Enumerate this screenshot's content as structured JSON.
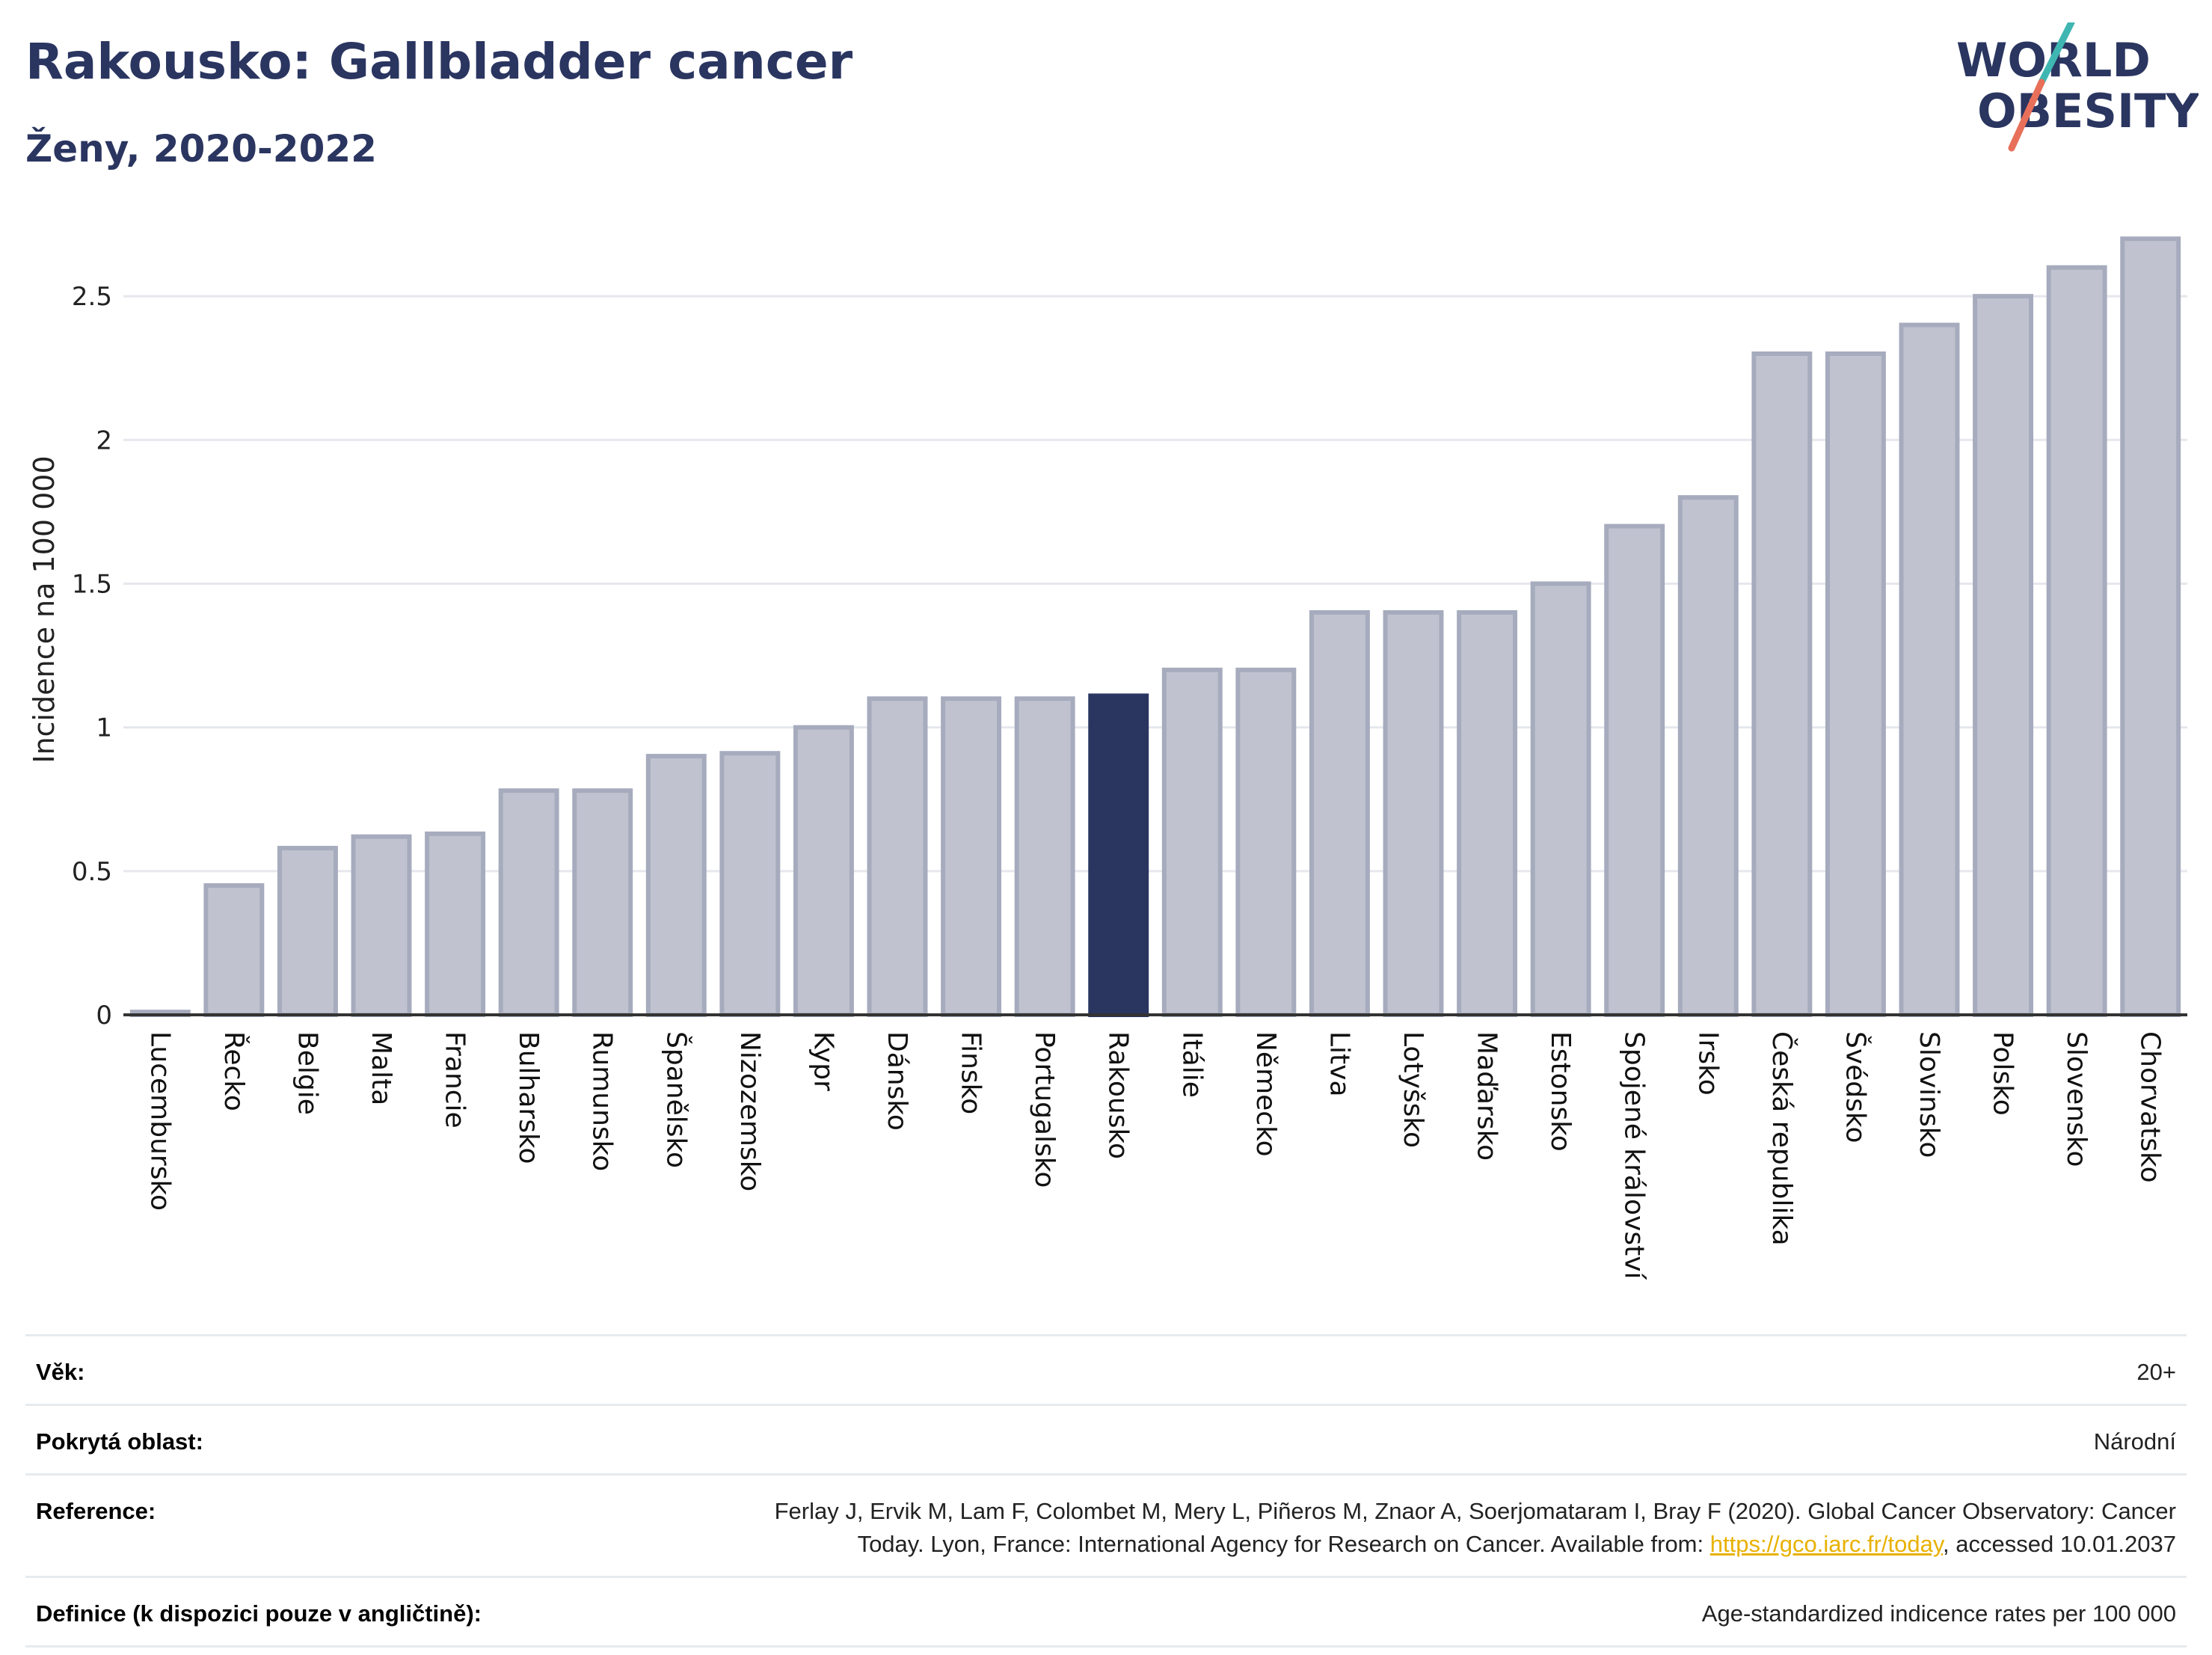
{
  "header": {
    "title": "Rakousko: Gallbladder cancer",
    "subtitle": "Ženy, 2020-2022"
  },
  "logo": {
    "line1": "WORLD",
    "line2": "OBESITY",
    "colors": {
      "text": "#2a3560",
      "slash_top": "#3fb6b2",
      "slash_bottom": "#e8705a"
    }
  },
  "chart_data": {
    "type": "bar",
    "ylabel": "Incidence na 100 000",
    "xlabel": "",
    "ylim": [
      0,
      2.75
    ],
    "yticks": [
      0,
      0.5,
      1,
      1.5,
      2,
      2.5
    ],
    "ytick_labels": [
      "0",
      "0.5",
      "1",
      "1.5",
      "2",
      "2.5"
    ],
    "grid": true,
    "highlight": "Rakousko",
    "colors": {
      "bar": "#c0c3cf",
      "bar_border": "#a6abbd",
      "highlight": "#2a3560",
      "grid": "#e6e8ee",
      "axis": "#333333"
    },
    "categories": [
      "Lucembursko",
      "Řecko",
      "Belgie",
      "Malta",
      "Francie",
      "Bulharsko",
      "Rumunsko",
      "Španělsko",
      "Nizozemsko",
      "Kypr",
      "Dánsko",
      "Finsko",
      "Portugalsko",
      "Rakousko",
      "Itálie",
      "Německo",
      "Litva",
      "Lotyšsko",
      "Maďarsko",
      "Estonsko",
      "Spojené království",
      "Irsko",
      "Česká republika",
      "Švédsko",
      "Slovinsko",
      "Polsko",
      "Slovensko",
      "Chorvatsko"
    ],
    "values": [
      0.01,
      0.45,
      0.58,
      0.62,
      0.63,
      0.78,
      0.78,
      0.9,
      0.91,
      1.0,
      1.1,
      1.1,
      1.1,
      1.11,
      1.2,
      1.2,
      1.4,
      1.4,
      1.4,
      1.5,
      1.7,
      1.8,
      2.3,
      2.3,
      2.4,
      2.5,
      2.6,
      2.7
    ]
  },
  "info": {
    "rows": [
      {
        "label": "Věk:",
        "value": "20+"
      },
      {
        "label": "Pokrytá oblast:",
        "value": "Národní"
      },
      {
        "label": "Reference:",
        "value_line1": "Ferlay J, Ervik M, Lam F, Colombet M, Mery L, Piñeros M, Znaor A, Soerjomataram I, Bray F (2020). Global Cancer Observatory: Cancer",
        "value_line2_pre": "Today. Lyon, France: International Agency for Research on Cancer. Available from: ",
        "link": "https://gco.iarc.fr/today",
        "value_line2_post": ", accessed 10.01.2037"
      },
      {
        "label": "Definice (k dispozici pouze v angličtině):",
        "value": "Age-standardized indicence rates per 100 000"
      }
    ]
  }
}
